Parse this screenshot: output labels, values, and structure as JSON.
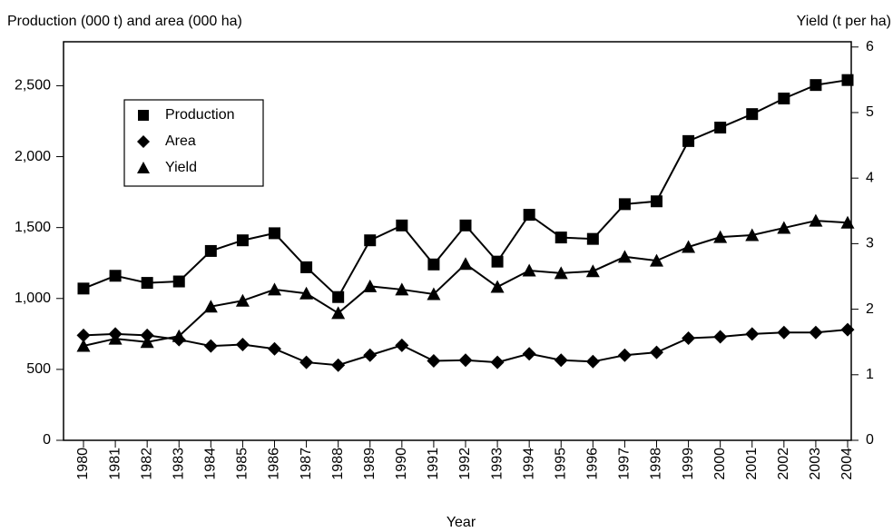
{
  "chart_data": {
    "type": "line",
    "y_label": "Production (000 t) and area (000 ha)",
    "y2_label": "Yield (t per ha)",
    "x_label": "Year",
    "categories": [
      "1980",
      "1981",
      "1982",
      "1983",
      "1984",
      "1985",
      "1986",
      "1987",
      "1988",
      "1989",
      "1990",
      "1991",
      "1992",
      "1993",
      "1994",
      "1995",
      "1996",
      "1997",
      "1998",
      "1999",
      "2000",
      "2001",
      "2002",
      "2003",
      "2004"
    ],
    "series": [
      {
        "name": "Production",
        "color": "#000000",
        "marker": "square",
        "values": [
          1070,
          1160,
          1110,
          1120,
          1335,
          1410,
          1460,
          1220,
          1010,
          1410,
          1515,
          1240,
          1515,
          1260,
          1590,
          1430,
          1420,
          1665,
          1685,
          2110,
          2205,
          2300,
          2410,
          2505,
          2540
        ]
      },
      {
        "name": "Area",
        "color": "#000000",
        "marker": "diamond",
        "values": [
          740,
          750,
          740,
          710,
          665,
          675,
          645,
          550,
          530,
          600,
          670,
          560,
          565,
          550,
          610,
          565,
          555,
          600,
          620,
          720,
          730,
          750,
          760,
          760,
          780
        ]
      },
      {
        "name": "Yield",
        "color": "#000000",
        "marker": "triangle",
        "axis": "y2",
        "values": [
          1.44,
          1.55,
          1.5,
          1.59,
          2.04,
          2.13,
          2.3,
          2.24,
          1.94,
          2.35,
          2.3,
          2.23,
          2.69,
          2.34,
          2.59,
          2.55,
          2.58,
          2.8,
          2.74,
          2.95,
          3.1,
          3.13,
          3.24,
          3.35,
          3.32
        ]
      }
    ],
    "ylim": [
      0,
      2810
    ],
    "yticks": [
      0,
      500,
      {
        "value": 1000,
        "label": "1,000"
      },
      {
        "value": 1500,
        "label": "1,500"
      },
      {
        "value": 2000,
        "label": "2,000"
      },
      {
        "value": 2500,
        "label": "2,500"
      }
    ],
    "y2lim": [
      0,
      6.08
    ],
    "y2ticks": [
      0,
      1,
      2,
      3,
      4,
      5,
      6
    ],
    "legend": "upper left",
    "grid": false
  }
}
